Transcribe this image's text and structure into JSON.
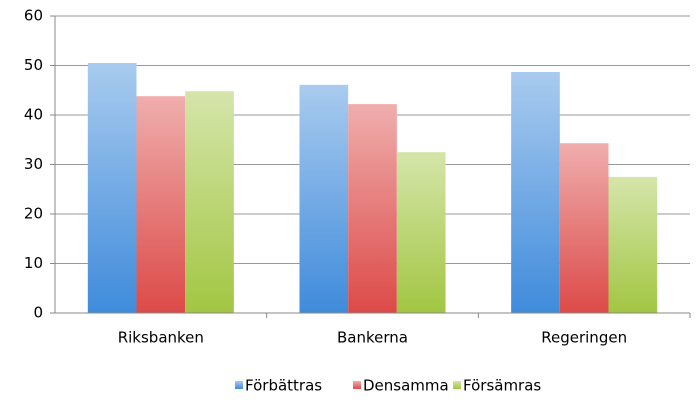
{
  "chart_data": {
    "type": "bar",
    "categories": [
      "Riksbanken",
      "Bankerna",
      "Regeringen"
    ],
    "series": [
      {
        "name": "Förbättras",
        "color": "#3f8bdb",
        "values": [
          50.5,
          46.1,
          48.7
        ]
      },
      {
        "name": "Densamma",
        "color": "#dc4a48",
        "values": [
          43.8,
          42.2,
          34.3
        ]
      },
      {
        "name": "Försämras",
        "color": "#a2c642",
        "values": [
          44.8,
          32.5,
          27.5
        ]
      }
    ],
    "ylim": [
      0,
      60
    ],
    "yticks": [
      0,
      10,
      20,
      30,
      40,
      50,
      60
    ],
    "grid": true,
    "legend": "bottom"
  }
}
